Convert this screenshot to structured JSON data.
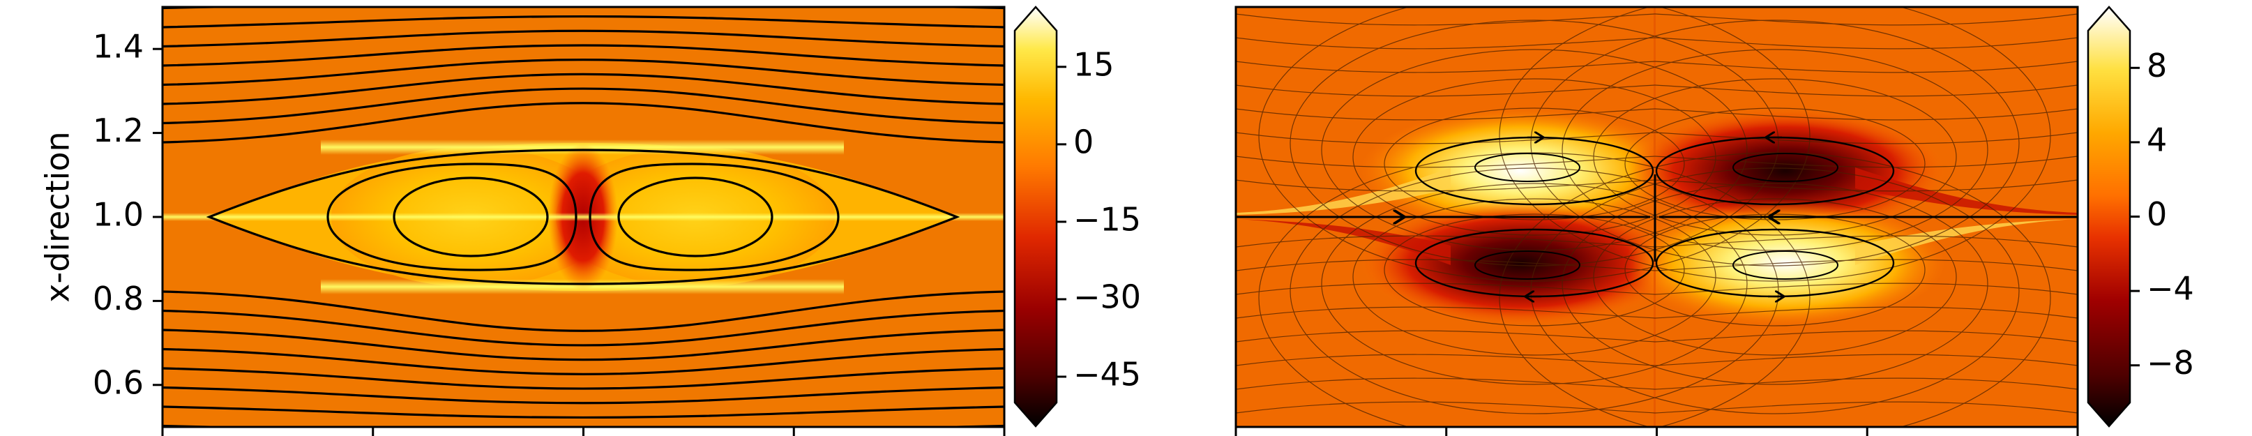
{
  "colors": {
    "colormap": [
      "#000000",
      "#4d0000",
      "#8b0000",
      "#cc1a00",
      "#ff4d00",
      "#ff8000",
      "#ffb000",
      "#ffdd00",
      "#ffff66",
      "#ffffff"
    ],
    "streamline_color": "#000000",
    "background_left": "#f07800",
    "background_right": "#f06a00"
  },
  "chart_data": [
    {
      "type": "heatmap",
      "panel": "left",
      "title": "",
      "xlabel": "",
      "ylabel": "x-direction",
      "ylim": [
        0.5,
        1.5
      ],
      "y_ticks": [
        0.6,
        0.8,
        1.0,
        1.2,
        1.4
      ],
      "y_tick_labels": [
        "0.6",
        "0.8",
        "1.0",
        "1.2",
        "1.4"
      ],
      "x_tick_count": 5,
      "colorbar": {
        "ticks": [
          15,
          0,
          -15,
          -30,
          -45
        ],
        "tick_labels": [
          "15",
          "0",
          "−15",
          "−30",
          "−45"
        ],
        "range": [
          -50,
          22
        ],
        "extend": "both"
      },
      "overlay": "streamlines",
      "features": {
        "vortex_count": 2,
        "vortex_centers_y": [
          1.0,
          1.0
        ],
        "separatrix_y_range": [
          0.83,
          1.17
        ],
        "field_min_near": "center gap between vortices",
        "field_max_near": "separatrix edges at y=0.85 and y=1.15"
      },
      "grid": false
    },
    {
      "type": "heatmap",
      "panel": "right",
      "title": "",
      "xlabel": "",
      "ylabel": "",
      "ylim": [
        0.5,
        1.5
      ],
      "x_tick_count": 5,
      "colorbar": {
        "ticks": [
          8,
          4,
          0,
          -4,
          -8
        ],
        "tick_labels": [
          "8",
          "4",
          "0",
          "−4",
          "−8"
        ],
        "range": [
          -10,
          10
        ],
        "extend": "both"
      },
      "overlay": "streamlines with arrows",
      "features": {
        "lobe_count": 4,
        "upper_left_lobe": "positive",
        "upper_right_lobe": "negative",
        "lower_left_lobe": "negative",
        "lower_right_lobe": "positive",
        "streamline_arrows_direction_centerline": [
          "right on left half",
          "left on right half"
        ]
      },
      "grid": false
    }
  ]
}
